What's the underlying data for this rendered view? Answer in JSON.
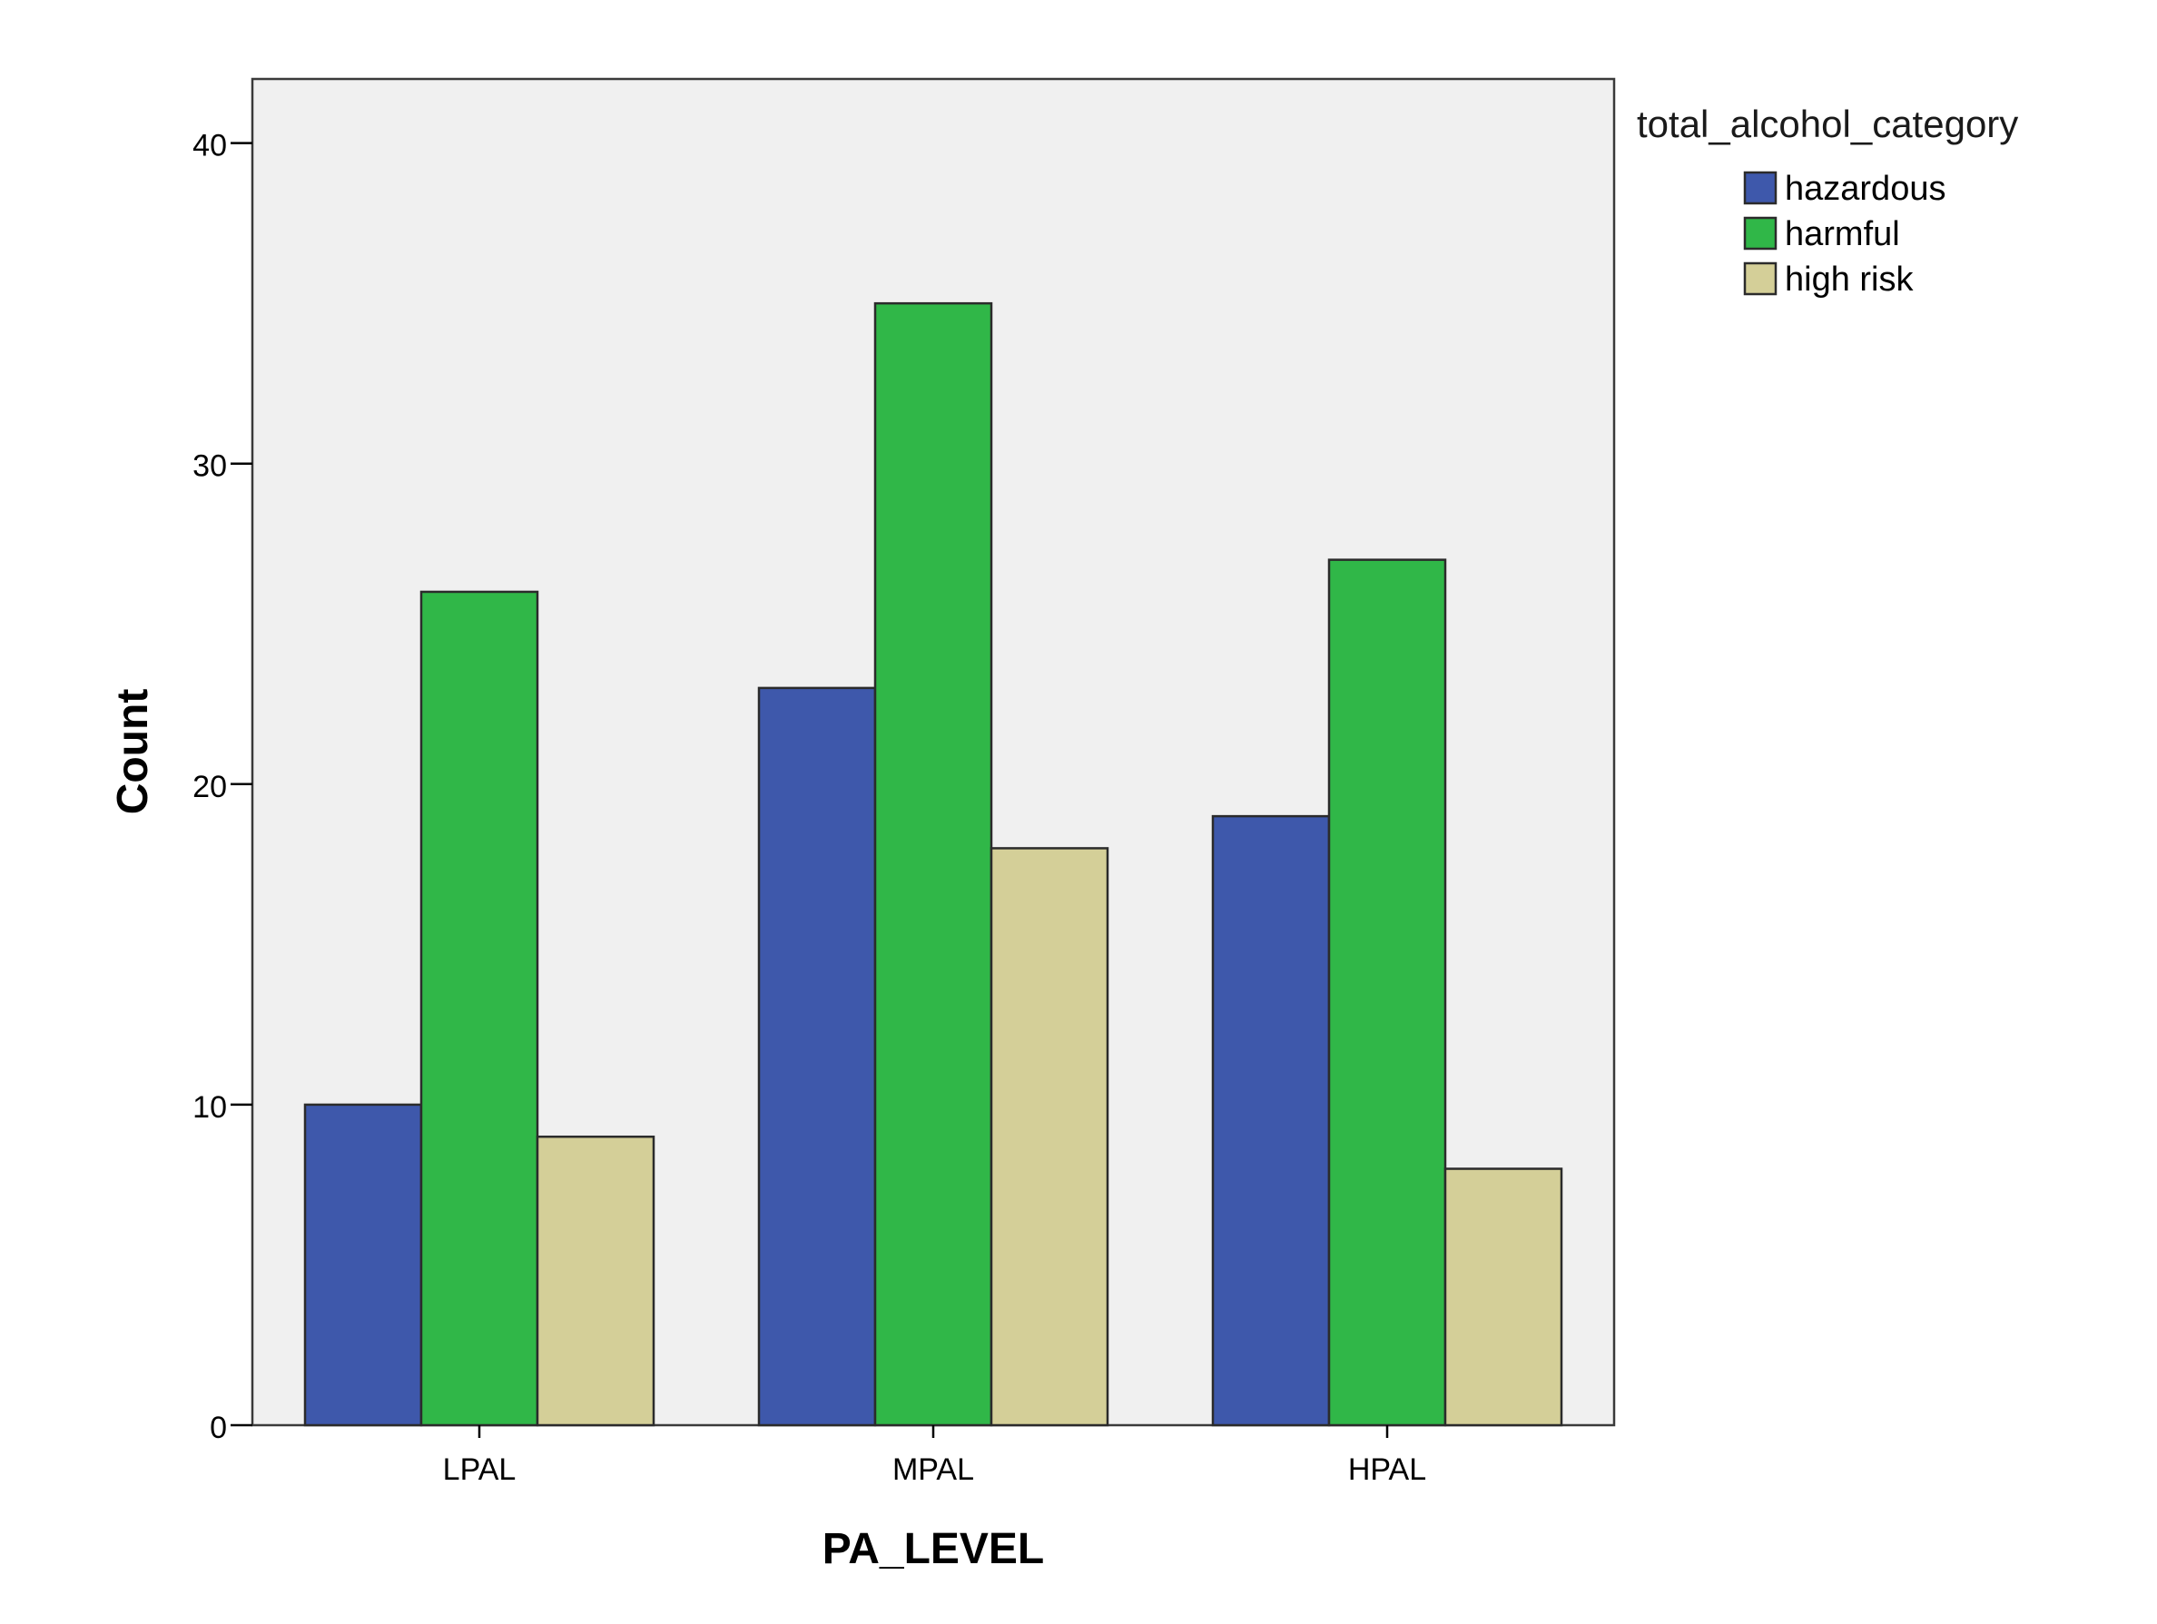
{
  "chart_data": {
    "type": "bar",
    "xlabel": "PA_LEVEL",
    "ylabel": "Count",
    "categories": [
      "LPAL",
      "MPAL",
      "HPAL"
    ],
    "ylim": [
      0,
      42
    ],
    "yticks": [
      0,
      10,
      20,
      30,
      40
    ],
    "legend_title": "total_alcohol_category",
    "legend_position": "top-right, outside plot",
    "grid": false,
    "plot_background": "#f0f0f0",
    "series": [
      {
        "name": "hazardous",
        "color": "#3e58ab",
        "values": [
          10,
          23,
          19
        ]
      },
      {
        "name": "harmful",
        "color": "#30b748",
        "values": [
          26,
          35,
          27
        ]
      },
      {
        "name": "high risk",
        "color": "#d4cf98",
        "values": [
          9,
          18,
          8
        ]
      }
    ]
  }
}
